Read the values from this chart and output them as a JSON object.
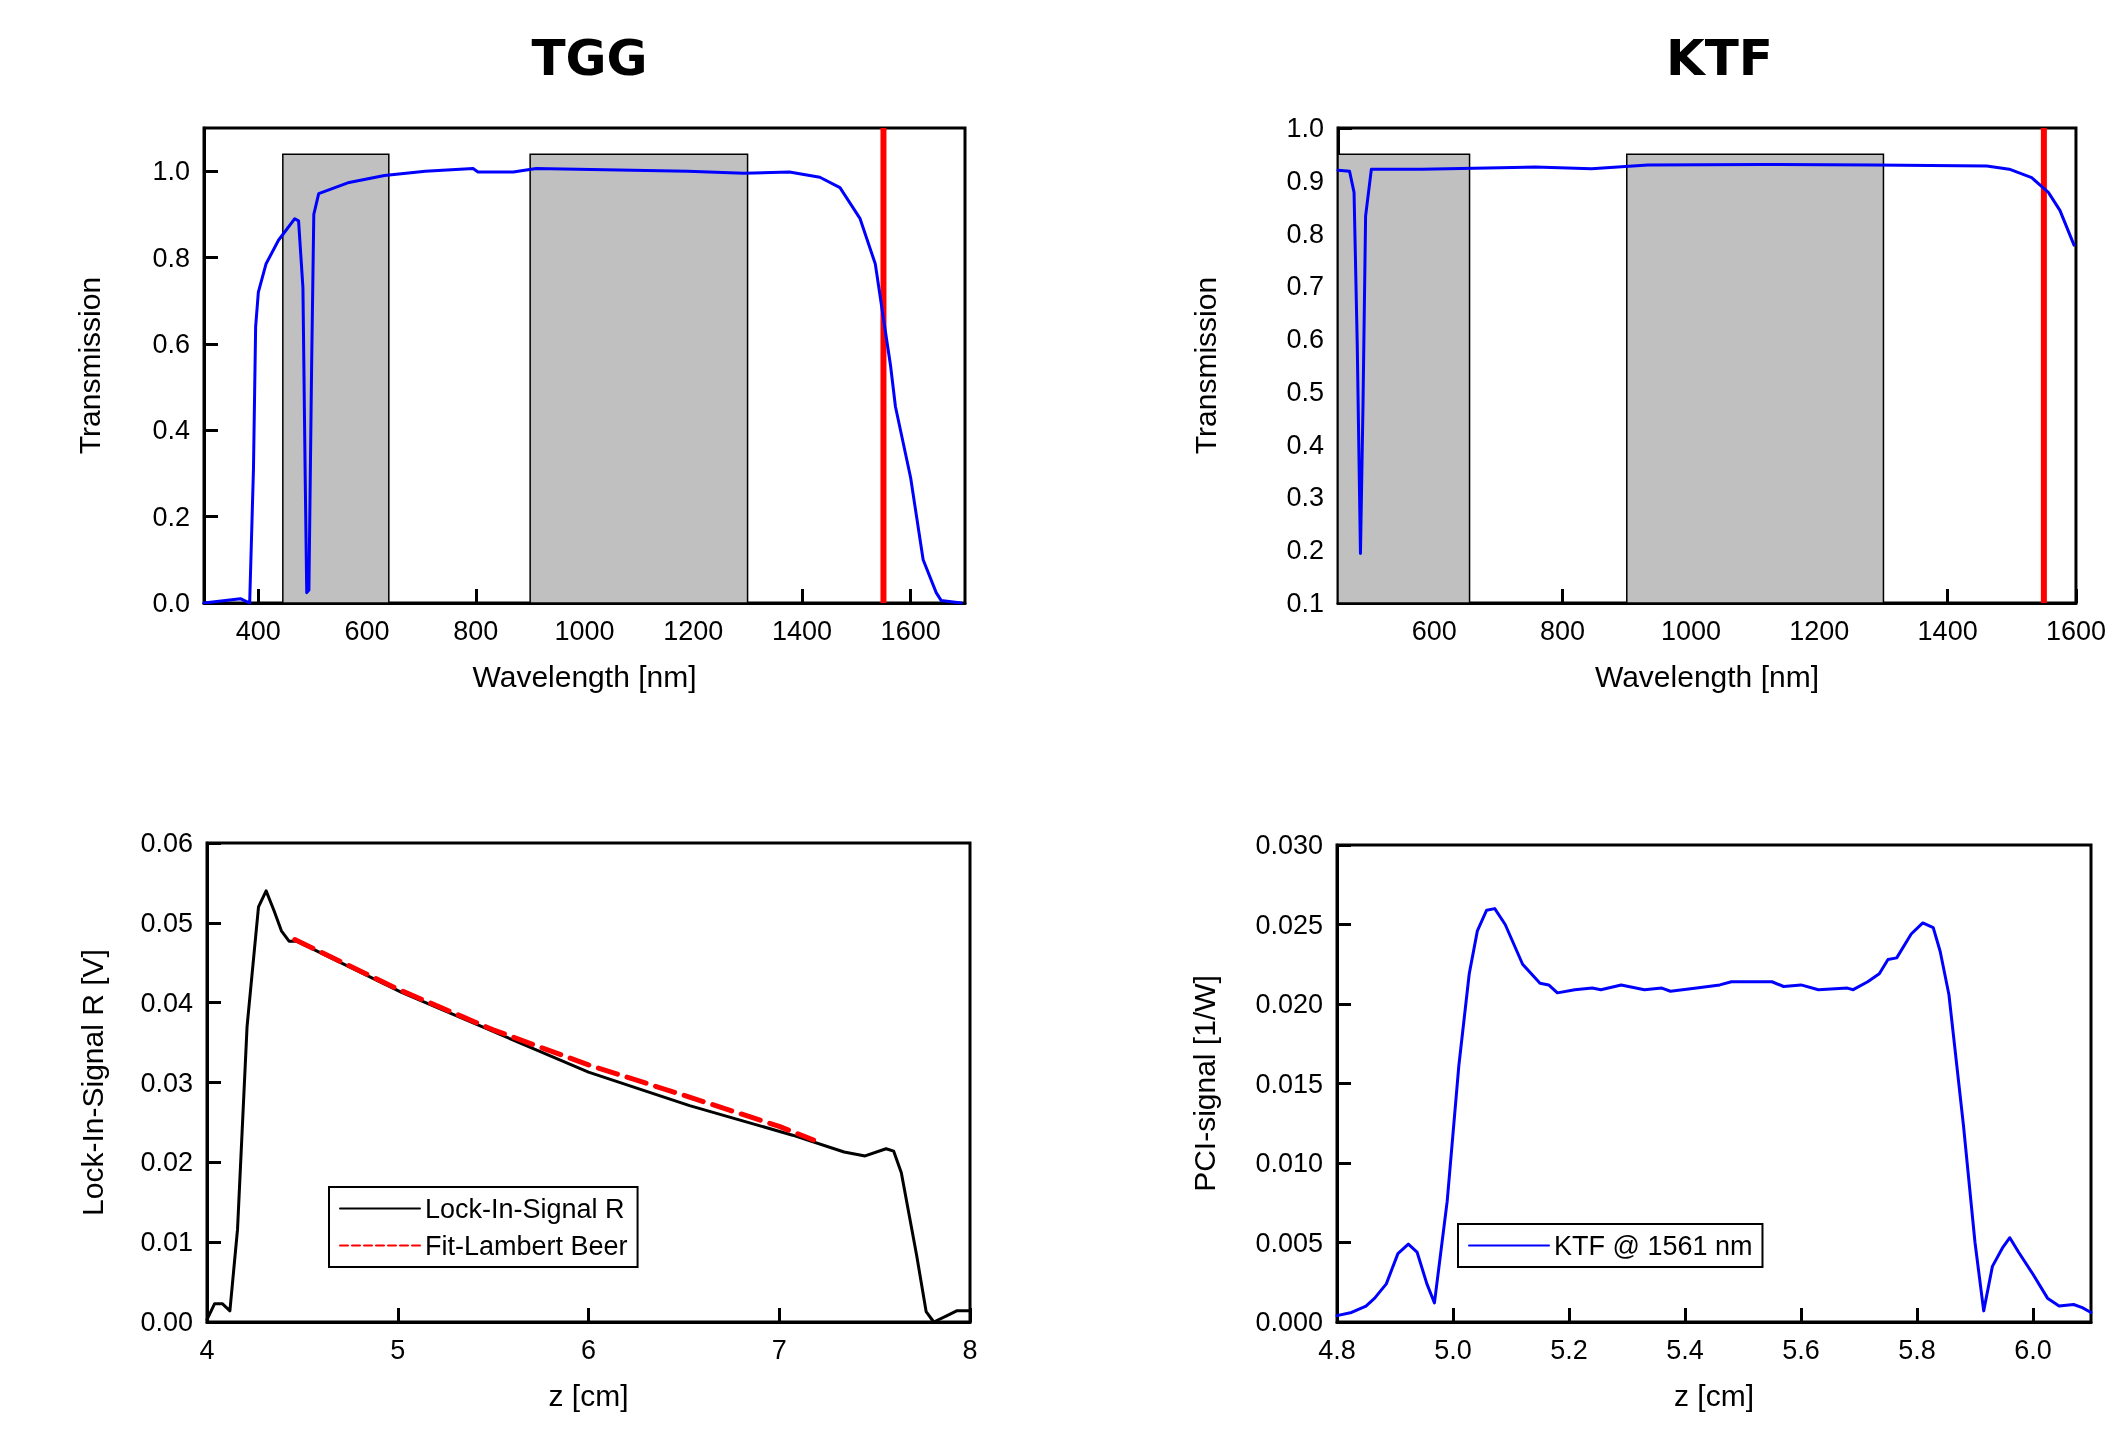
{
  "chart_data": [
    {
      "type": "line",
      "title": "TGG",
      "xlabel": "Wavelength [nm]",
      "ylabel": "Transmission",
      "xlim": [
        300,
        1700
      ],
      "xticks": [
        400,
        600,
        800,
        1000,
        1200,
        1400,
        1600
      ],
      "ylim": [
        0,
        1.1
      ],
      "yticks": [
        {
          "value": 0,
          "label": "0.0"
        },
        0.2,
        0.4,
        0.6,
        0.8,
        {
          "value": 1,
          "label": "1.0"
        }
      ],
      "bands": [
        {
          "axis": "x",
          "from": 445,
          "to": 640,
          "color": "#c0c0c0"
        },
        {
          "axis": "x",
          "from": 900,
          "to": 1300,
          "color": "#c0c0c0"
        }
      ],
      "ref_lines": [
        {
          "axis": "x",
          "value": 1550,
          "color": "#ff0000"
        }
      ],
      "series": [
        {
          "color": "#0000ff",
          "x": [
            300,
            367,
            384,
            391,
            395,
            400,
            414,
            437,
            467,
            474,
            482,
            486,
            489,
            493,
            498,
            502,
            511,
            567,
            632,
            707,
            795,
            804,
            869,
            911,
            1190,
            1293,
            1377,
            1433,
            1470,
            1507,
            1535,
            1549,
            1563,
            1572,
            1600,
            1623,
            1647,
            1656,
            1693
          ],
          "values": [
            0,
            0.01,
            0,
            0.31,
            0.64,
            0.72,
            0.785,
            0.84,
            0.89,
            0.885,
            0.73,
            0.31,
            0.024,
            0.03,
            0.55,
            0.9,
            0.948,
            0.974,
            0.99,
            1.0,
            1.006,
            0.998,
            0.998,
            1.006,
            1.0,
            0.995,
            0.998,
            0.986,
            0.962,
            0.89,
            0.785,
            0.667,
            0.55,
            0.455,
            0.29,
            0.1,
            0.024,
            0.006,
            0
          ]
        }
      ]
    },
    {
      "type": "line",
      "title": "KTF",
      "xlabel": "Wavelength [nm]",
      "ylabel": "Transmission",
      "xlim": [
        450,
        1600
      ],
      "xticks": [
        600,
        800,
        1000,
        1200,
        1400,
        1600
      ],
      "ylim": [
        0.1,
        1.0
      ],
      "yticks": [
        0.1,
        0.2,
        0.3,
        0.4,
        0.5,
        0.6,
        0.7,
        0.8,
        0.9,
        {
          "value": 1,
          "label": "1.0"
        }
      ],
      "bands": [
        {
          "axis": "x",
          "from": 450,
          "to": 655,
          "color": "#c0c0c0"
        },
        {
          "axis": "x",
          "from": 900,
          "to": 1300,
          "color": "#c0c0c0"
        }
      ],
      "ref_lines": [
        {
          "axis": "x",
          "value": 1550,
          "color": "#ff0000"
        }
      ],
      "series": [
        {
          "color": "#0000ff",
          "x": [
            450,
            468,
            475,
            480,
            485,
            489,
            493,
            502,
            580,
            757,
            845,
            933,
            1109,
            1285,
            1461,
            1496,
            1531,
            1557,
            1575,
            1597
          ],
          "values": [
            0.92,
            0.918,
            0.878,
            0.589,
            0.194,
            0.478,
            0.833,
            0.922,
            0.922,
            0.926,
            0.923,
            0.93,
            0.931,
            0.93,
            0.928,
            0.922,
            0.906,
            0.878,
            0.844,
            0.778
          ]
        }
      ]
    },
    {
      "type": "line",
      "xlabel": "z [cm]",
      "ylabel": "Lock-In-Signal R [V]",
      "xlim": [
        4,
        8
      ],
      "xticks": [
        4,
        5,
        6,
        7,
        8
      ],
      "ylim": [
        0,
        0.06
      ],
      "yticks": [
        {
          "value": 0,
          "label": "0.00"
        },
        0.01,
        0.02,
        0.03,
        0.04,
        0.05,
        0.06
      ],
      "legend": "bottom left",
      "series": [
        {
          "name": "Lock-In-Signal R",
          "color": "#000000",
          "line_style": "solid",
          "x": [
            4.0,
            4.04,
            4.08,
            4.12,
            4.16,
            4.21,
            4.27,
            4.31,
            4.35,
            4.39,
            4.43,
            4.47,
            5.02,
            5.46,
            6.0,
            6.53,
            7.07,
            7.34,
            7.45,
            7.56,
            7.6,
            7.64,
            7.72,
            7.77,
            7.81,
            7.88,
            7.93,
            8.0
          ],
          "values": [
            0.0003,
            0.0023,
            0.0023,
            0.0014,
            0.0116,
            0.037,
            0.052,
            0.054,
            0.0516,
            0.049,
            0.0477,
            0.0477,
            0.0413,
            0.0368,
            0.0313,
            0.0271,
            0.0234,
            0.0213,
            0.0208,
            0.0217,
            0.0214,
            0.0187,
            0.0084,
            0.0013,
            0,
            0.0008,
            0.0014,
            0.0014
          ]
        },
        {
          "name": "Fit-Lambert Beer",
          "color": "#ff0000",
          "line_style": "dashed",
          "x": [
            4.46,
            5.0,
            5.5,
            6.0,
            6.5,
            7.0,
            7.18
          ],
          "values": [
            0.0479,
            0.0417,
            0.0366,
            0.0322,
            0.0284,
            0.0245,
            0.0228
          ]
        }
      ]
    },
    {
      "type": "line",
      "xlabel": "z [cm]",
      "ylabel": "PCI-signal [1/W]",
      "xlim": [
        4.8,
        6.1
      ],
      "xticks": [
        4.8,
        {
          "value": 5,
          "label": "5.0"
        },
        5.2,
        5.4,
        5.6,
        5.8,
        {
          "value": 6,
          "label": "6.0"
        }
      ],
      "ylim": [
        0,
        0.03
      ],
      "yticks": [
        {
          "value": 0,
          "label": "0.000"
        },
        0.005,
        {
          "value": 0.01,
          "label": "0.010"
        },
        0.015,
        {
          "value": 0.02,
          "label": "0.020"
        },
        0.025,
        {
          "value": 0.03,
          "label": "0.030"
        }
      ],
      "legend": "bottom left",
      "series": [
        {
          "name": "KTF @ 1561 nm",
          "color": "#0000ff",
          "line_style": "solid",
          "x": [
            4.8,
            4.825,
            4.85,
            4.865,
            4.885,
            4.905,
            4.923,
            4.938,
            4.955,
            4.968,
            4.99,
            5.01,
            5.028,
            5.042,
            5.058,
            5.072,
            5.09,
            5.12,
            5.15,
            5.165,
            5.18,
            5.21,
            5.24,
            5.255,
            5.29,
            5.33,
            5.36,
            5.375,
            5.42,
            5.46,
            5.48,
            5.55,
            5.57,
            5.6,
            5.63,
            5.68,
            5.69,
            5.715,
            5.735,
            5.75,
            5.765,
            5.79,
            5.81,
            5.828,
            5.84,
            5.855,
            5.88,
            5.9,
            5.915,
            5.93,
            5.948,
            5.96,
            5.975,
            6.0,
            6.025,
            6.045,
            6.07,
            6.085,
            6.1
          ],
          "values": [
            0.0004,
            0.0006,
            0.001,
            0.0015,
            0.0024,
            0.0043,
            0.0049,
            0.0044,
            0.0024,
            0.0012,
            0.0076,
            0.0161,
            0.0219,
            0.0246,
            0.0259,
            0.026,
            0.025,
            0.0225,
            0.0213,
            0.0212,
            0.0207,
            0.0209,
            0.021,
            0.0209,
            0.0212,
            0.0209,
            0.021,
            0.0208,
            0.021,
            0.0212,
            0.0214,
            0.0214,
            0.0211,
            0.0212,
            0.0209,
            0.021,
            0.0209,
            0.0214,
            0.0219,
            0.0228,
            0.0229,
            0.0244,
            0.0251,
            0.0248,
            0.0233,
            0.0206,
            0.0124,
            0.005,
            0.0007,
            0.0035,
            0.0047,
            0.0053,
            0.0044,
            0.003,
            0.0015,
            0.001,
            0.0011,
            0.0009,
            0.0006
          ]
        }
      ]
    }
  ]
}
